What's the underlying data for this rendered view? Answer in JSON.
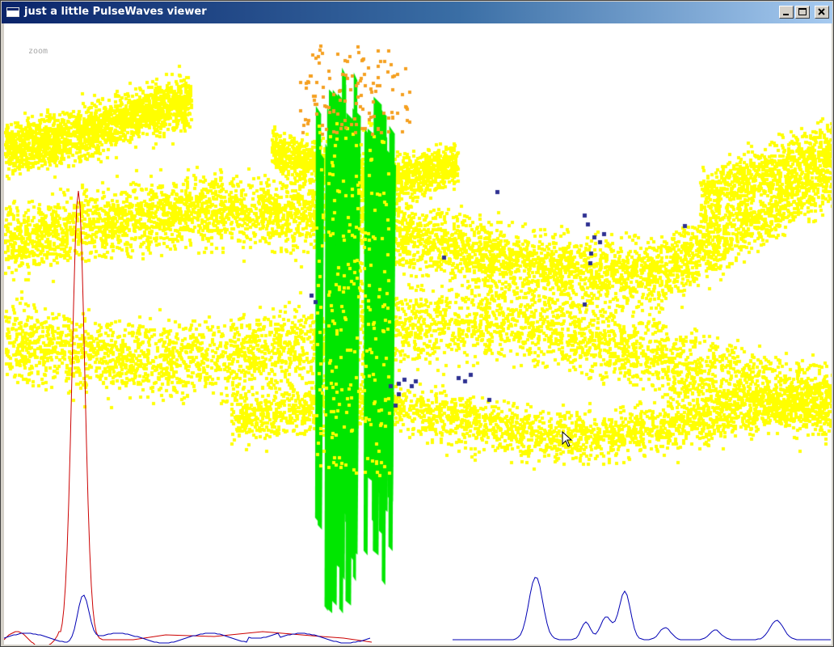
{
  "window": {
    "title": "just a little PulseWaves viewer",
    "controls": {
      "minimize": "minimize",
      "maximize": "maximize",
      "close": "close"
    }
  },
  "viewport": {
    "mode_label": "zoom",
    "colors": {
      "background": "#ffffff",
      "ground_points": "#ffff00",
      "tree_top_points": "#f5a020",
      "waveform_samples": "#00e600",
      "dark_points": "#2e3192",
      "waveform_trace_1": "#cc0000",
      "waveform_trace_2": "#0000b4"
    },
    "icons": [
      "mouse-cursor-icon"
    ]
  }
}
